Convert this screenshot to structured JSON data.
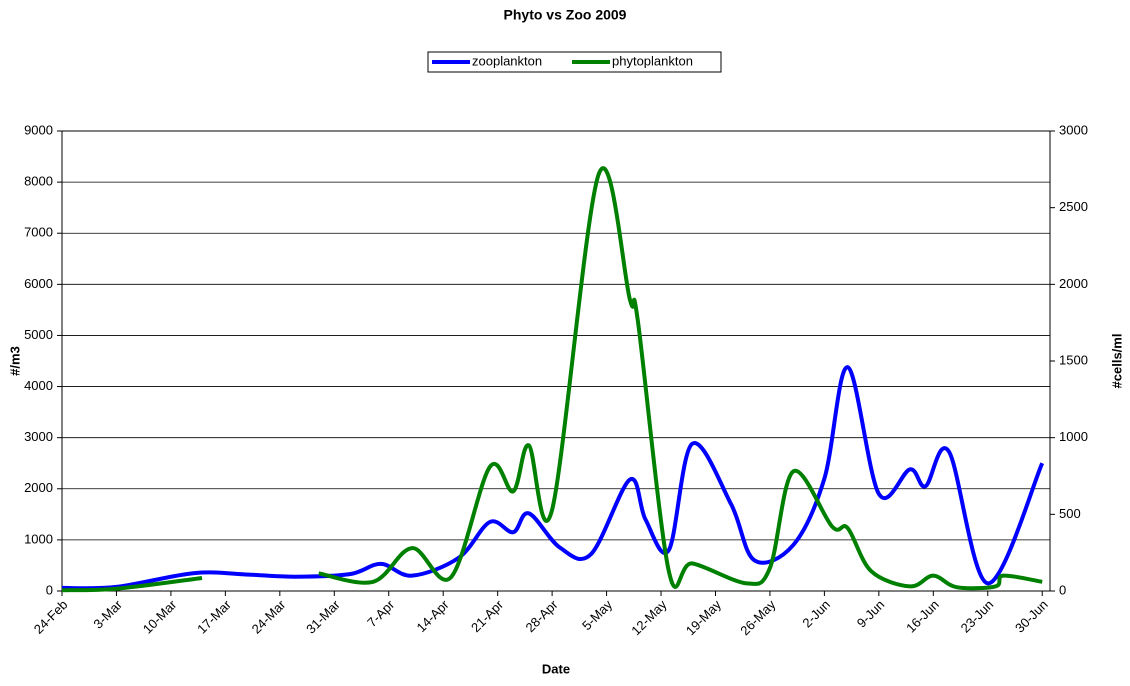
{
  "chart_data": {
    "type": "line",
    "title": "Phyto vs Zoo 2009",
    "x_label": "Date",
    "y_label": "#/m3",
    "y2_label": "#cells/ml",
    "xlim": [
      "24-Feb",
      "1-Jul"
    ],
    "xticks": [
      "24-Feb",
      "3-Mar",
      "10-Mar",
      "17-Mar",
      "24-Mar",
      "31-Mar",
      "7-Apr",
      "14-Apr",
      "21-Apr",
      "28-Apr",
      "5-May",
      "12-May",
      "19-May",
      "26-May",
      "2-Jun",
      "9-Jun",
      "16-Jun",
      "23-Jun",
      "30-Jun"
    ],
    "ylim": [
      0,
      9000
    ],
    "yticks": [
      0,
      1000,
      2000,
      3000,
      4000,
      5000,
      6000,
      7000,
      8000,
      9000
    ],
    "y2lim": [
      0,
      3000
    ],
    "y2ticks": [
      0,
      500,
      1000,
      1500,
      2000,
      2500,
      3000
    ],
    "grid": true,
    "legend": "top",
    "series": [
      {
        "name": "zooplankton",
        "color": "#0000ff",
        "x": [
          "24-Feb",
          "3-Mar",
          "13-Mar",
          "20-Mar",
          "26-Mar",
          "2-Apr",
          "6-Apr",
          "10-Apr",
          "16-Apr",
          "20-Apr",
          "23-Apr",
          "25-Apr",
          "29-Apr",
          "3-May",
          "8-May",
          "10-May",
          "13-May",
          "16-May",
          "21-May",
          "24-May",
          "29-May",
          "2-Jun",
          "5-Jun",
          "9-Jun",
          "13-Jun",
          "15-Jun",
          "18-Jun",
          "23-Jun",
          "30-Jun"
        ],
        "values": [
          60,
          80,
          350,
          320,
          280,
          330,
          530,
          300,
          650,
          1350,
          1150,
          1520,
          850,
          720,
          2180,
          1400,
          800,
          2880,
          1700,
          600,
          900,
          2200,
          4380,
          1900,
          2380,
          2050,
          2730,
          150,
          2500
        ]
      },
      {
        "name": "phytoplankton",
        "color": "#008000",
        "axis": "y2",
        "x": [
          "24-Feb",
          "3-Mar",
          "14-Mar",
          "20-Mar",
          "29-Mar",
          "5-Apr",
          "10-Apr",
          "15-Apr",
          "20-Apr",
          "23-Apr",
          "25-Apr",
          "28-Apr",
          "4-May",
          "8-May",
          "9-May",
          "13-May",
          "16-May",
          "23-May",
          "26-May",
          "29-May",
          "3-Jun",
          "5-Jun",
          "8-Jun",
          "13-Jun",
          "16-Jun",
          "19-Jun",
          "24-Jun",
          "25-Jun",
          "30-Jun"
        ],
        "values": [
          5,
          15,
          85,
          null,
          115,
          60,
          280,
          90,
          810,
          650,
          950,
          530,
          2720,
          1900,
          1770,
          130,
          180,
          50,
          150,
          780,
          420,
          410,
          130,
          30,
          100,
          25,
          30,
          100,
          60
        ]
      }
    ]
  }
}
